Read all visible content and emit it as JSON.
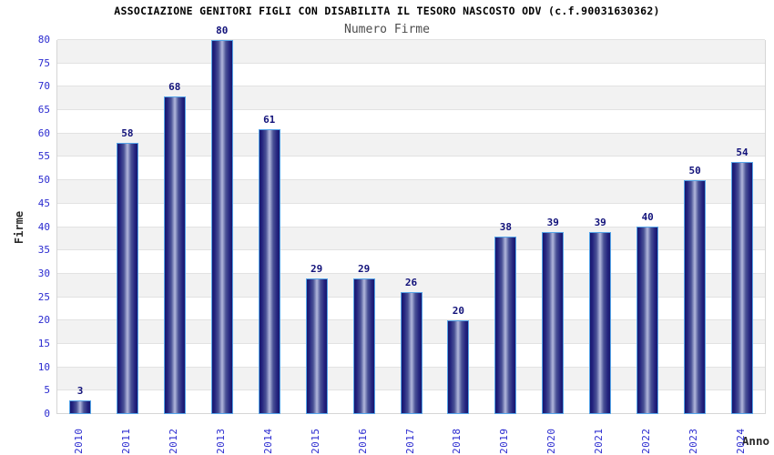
{
  "chart_data": {
    "type": "bar",
    "title": "ASSOCIAZIONE GENITORI FIGLI CON DISABILITA IL TESORO NASCOSTO ODV (c.f.90031630362)",
    "subtitle": "Numero Firme",
    "xlabel": "Anno",
    "ylabel": "Firme",
    "categories": [
      "2010",
      "2011",
      "2012",
      "2013",
      "2014",
      "2015",
      "2016",
      "2017",
      "2018",
      "2019",
      "2020",
      "2021",
      "2022",
      "2023",
      "2024"
    ],
    "values": [
      3,
      58,
      68,
      80,
      61,
      29,
      29,
      26,
      20,
      38,
      39,
      39,
      40,
      50,
      54
    ],
    "ylim": [
      0,
      80
    ],
    "ytick_step": 5,
    "bar_value_labels_shown": true,
    "grid": "horizontal-bands",
    "legend": ""
  },
  "colors": {
    "title": "#000000",
    "subtitle": "#4d4d4d",
    "axis_title": "#2b2b2b",
    "tick_label": "#2b2bd0",
    "value_label": "#12127a",
    "bar_dark": "#17176e",
    "bar_mid": "#4a5296",
    "bar_light": "#b2b8dc",
    "bar_border": "#55a4e8",
    "band_fill": "#f2f2f2",
    "grid_line": "#e2e2e2",
    "plot_border": "#d5d5d5"
  }
}
